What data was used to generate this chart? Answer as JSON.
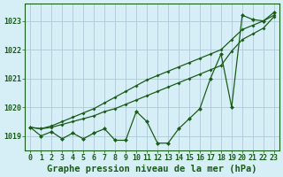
{
  "xlabel": "Graphe pression niveau de la mer (hPa)",
  "background_color": "#d6eef5",
  "grid_color": "#b0c8d8",
  "line_color": "#1a5c1a",
  "x": [
    0,
    1,
    2,
    3,
    4,
    5,
    6,
    7,
    8,
    9,
    10,
    11,
    12,
    13,
    14,
    15,
    16,
    17,
    18,
    19,
    20,
    21,
    22,
    23
  ],
  "y_main": [
    1019.3,
    1019.0,
    1019.15,
    1018.9,
    1019.1,
    1018.9,
    1019.1,
    1019.25,
    1018.85,
    1018.85,
    1019.85,
    1019.5,
    1018.75,
    1018.75,
    1019.25,
    1019.6,
    1019.95,
    1021.0,
    1021.85,
    1020.0,
    1023.2,
    1023.05,
    1023.0,
    1023.3
  ],
  "y_trend1": [
    1019.3,
    1019.25,
    1019.3,
    1019.4,
    1019.5,
    1019.6,
    1019.7,
    1019.85,
    1019.95,
    1020.1,
    1020.25,
    1020.4,
    1020.55,
    1020.7,
    1020.85,
    1021.0,
    1021.15,
    1021.3,
    1021.45,
    1021.95,
    1022.35,
    1022.55,
    1022.75,
    1023.15
  ],
  "y_trend2": [
    1019.3,
    1019.25,
    1019.35,
    1019.5,
    1019.65,
    1019.8,
    1019.95,
    1020.15,
    1020.35,
    1020.55,
    1020.75,
    1020.95,
    1021.1,
    1021.25,
    1021.4,
    1021.55,
    1021.7,
    1021.85,
    1022.0,
    1022.35,
    1022.7,
    1022.85,
    1023.0,
    1023.2
  ],
  "ylim": [
    1018.5,
    1023.6
  ],
  "yticks": [
    1019,
    1020,
    1021,
    1022,
    1023
  ],
  "xticks": [
    0,
    1,
    2,
    3,
    4,
    5,
    6,
    7,
    8,
    9,
    10,
    11,
    12,
    13,
    14,
    15,
    16,
    17,
    18,
    19,
    20,
    21,
    22,
    23
  ],
  "markersize": 2.0,
  "linewidth": 0.9,
  "xlabel_fontsize": 7.5,
  "tick_fontsize": 6.0
}
